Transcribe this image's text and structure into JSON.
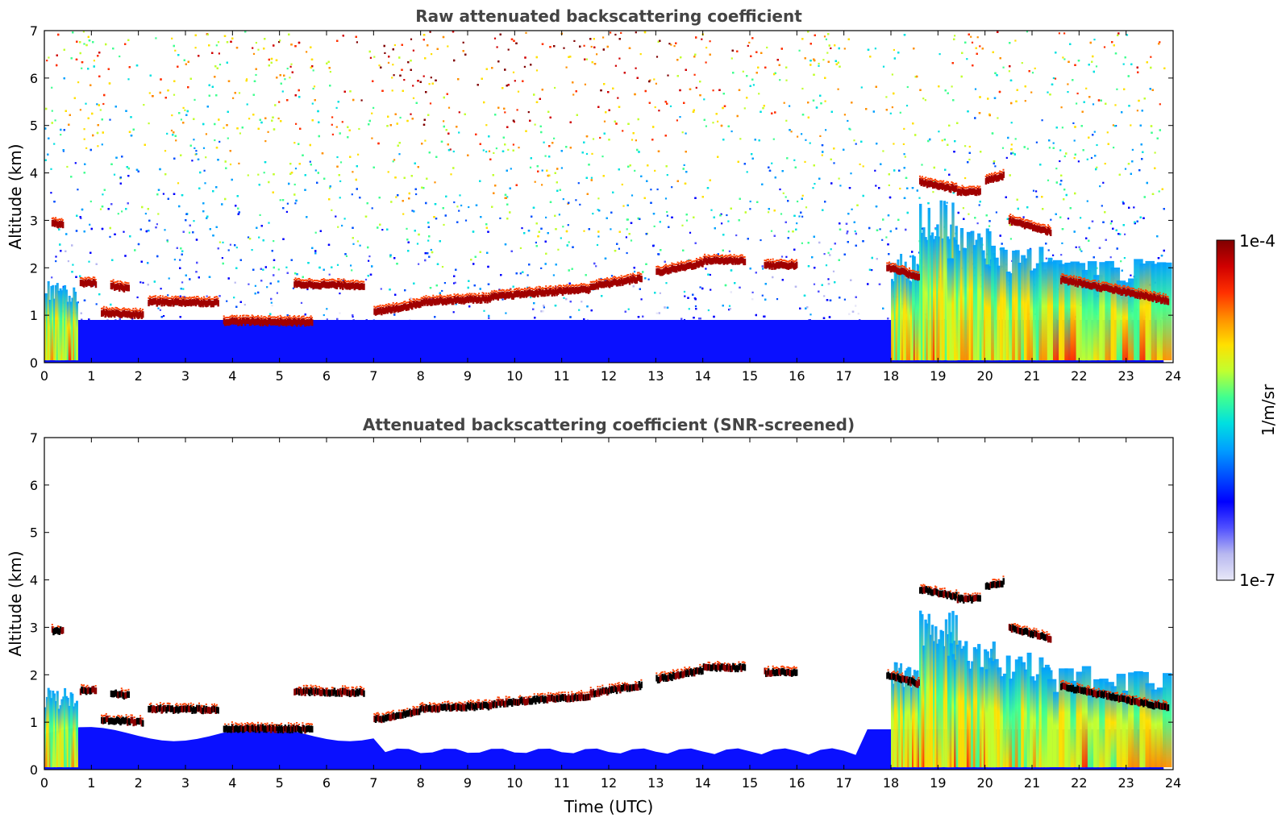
{
  "chart_data": {
    "type": "heatmap",
    "shared_colorbar": {
      "label": "1/m/sr",
      "min_label": "1e-7",
      "max_label": "1e-4",
      "range": [
        1e-07,
        0.0001
      ],
      "scale": "log",
      "colormap": [
        "#e8e8f8",
        "#b8b8f0",
        "#5050ff",
        "#0000ff",
        "#0050ff",
        "#00a0ff",
        "#00e0e0",
        "#40ff90",
        "#c0ff30",
        "#ffe000",
        "#ff9000",
        "#ff3000",
        "#d00000",
        "#800000"
      ]
    },
    "panels": [
      {
        "title": "Raw attenuated backscattering coefficient",
        "ylabel": "Altitude (km)",
        "xlabel": "",
        "xlim": [
          0,
          24
        ],
        "ylim": [
          0,
          7
        ],
        "x_ticks": [
          "0",
          "1",
          "2",
          "3",
          "4",
          "5",
          "6",
          "7",
          "8",
          "9",
          "10",
          "11",
          "12",
          "13",
          "14",
          "15",
          "16",
          "17",
          "18",
          "19",
          "20",
          "21",
          "22",
          "23",
          "24"
        ],
        "y_ticks": [
          "0",
          "1",
          "2",
          "3",
          "4",
          "5",
          "6",
          "7"
        ],
        "screened": false
      },
      {
        "title": "Attenuated backscattering coefficient (SNR-screened)",
        "ylabel": "Altitude (km)",
        "xlabel": "Time (UTC)",
        "xlim": [
          0,
          24
        ],
        "ylim": [
          0,
          7
        ],
        "x_ticks": [
          "0",
          "1",
          "2",
          "3",
          "4",
          "5",
          "6",
          "7",
          "8",
          "9",
          "10",
          "11",
          "12",
          "13",
          "14",
          "15",
          "16",
          "17",
          "18",
          "19",
          "20",
          "21",
          "22",
          "23",
          "24"
        ],
        "y_ticks": [
          "0",
          "1",
          "2",
          "3",
          "4",
          "5",
          "6",
          "7"
        ],
        "screened": true
      }
    ],
    "cloud_layers": [
      {
        "t": [
          0.15,
          0.4
        ],
        "alt": [
          2.93,
          2.93
        ]
      },
      {
        "t": [
          0.75,
          1.1
        ],
        "alt": [
          1.67,
          1.67
        ]
      },
      {
        "t": [
          1.4,
          1.8
        ],
        "alt": [
          1.62,
          1.55
        ]
      },
      {
        "t": [
          1.2,
          2.1
        ],
        "alt": [
          1.05,
          1.0
        ]
      },
      {
        "t": [
          2.2,
          3.7
        ],
        "alt": [
          1.28,
          1.26
        ]
      },
      {
        "t": [
          3.8,
          5.7
        ],
        "alt": [
          0.87,
          0.85
        ]
      },
      {
        "t": [
          5.3,
          6.8
        ],
        "alt": [
          1.65,
          1.62
        ]
      },
      {
        "t": [
          7.0,
          8.0
        ],
        "alt": [
          1.05,
          1.25
        ]
      },
      {
        "t": [
          8.0,
          9.5
        ],
        "alt": [
          1.28,
          1.35
        ]
      },
      {
        "t": [
          9.5,
          10.2
        ],
        "alt": [
          1.38,
          1.45
        ]
      },
      {
        "t": [
          10.2,
          11.6
        ],
        "alt": [
          1.45,
          1.55
        ]
      },
      {
        "t": [
          11.6,
          12.7
        ],
        "alt": [
          1.6,
          1.78
        ]
      },
      {
        "t": [
          13.0,
          14.0
        ],
        "alt": [
          1.9,
          2.1
        ]
      },
      {
        "t": [
          14.0,
          14.9
        ],
        "alt": [
          2.15,
          2.15
        ]
      },
      {
        "t": [
          15.3,
          16.0
        ],
        "alt": [
          2.05,
          2.05
        ]
      },
      {
        "t": [
          18.6,
          19.4
        ],
        "alt": [
          3.8,
          3.65
        ]
      },
      {
        "t": [
          19.4,
          19.9
        ],
        "alt": [
          3.6,
          3.6
        ]
      },
      {
        "t": [
          20.0,
          20.4
        ],
        "alt": [
          3.85,
          3.95
        ]
      },
      {
        "t": [
          20.5,
          21.4
        ],
        "alt": [
          3.0,
          2.75
        ]
      },
      {
        "t": [
          17.9,
          18.6
        ],
        "alt": [
          2.0,
          1.8
        ]
      },
      {
        "t": [
          21.6,
          23.9
        ],
        "alt": [
          1.75,
          1.3
        ]
      }
    ],
    "aerosol_plumes": [
      {
        "t": [
          0,
          0.7
        ],
        "top": 1.5
      },
      {
        "t": [
          18.0,
          18.7
        ],
        "top": 2.0
      },
      {
        "t": [
          18.6,
          19.4
        ],
        "top": 3.0
      },
      {
        "t": [
          19.2,
          20.2
        ],
        "top": 2.5
      },
      {
        "t": [
          20.0,
          21.4
        ],
        "top": 2.2
      },
      {
        "t": [
          21.2,
          23.9
        ],
        "top": 1.9
      }
    ]
  }
}
